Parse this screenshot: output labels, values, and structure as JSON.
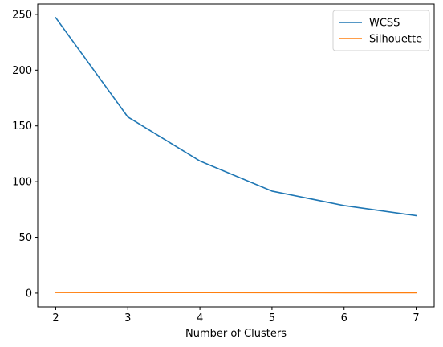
{
  "chart_data": {
    "type": "line",
    "title": "",
    "xlabel": "Number of Clusters",
    "ylabel": "",
    "x": [
      2,
      3,
      4,
      5,
      6,
      7
    ],
    "xlim": [
      1.75,
      7.25
    ],
    "ylim": [
      -12.3,
      259.3
    ],
    "xticks": [
      2,
      3,
      4,
      5,
      6,
      7
    ],
    "yticks": [
      0,
      50,
      100,
      150,
      200,
      250
    ],
    "grid": false,
    "legend_position": "top-right",
    "series": [
      {
        "name": "WCSS",
        "color": "#1f77b4",
        "values": [
          247.0,
          158.0,
          118.5,
          91.5,
          78.5,
          69.5
        ]
      },
      {
        "name": "Silhouette",
        "color": "#ff7f0e",
        "values": [
          0.58,
          0.55,
          0.5,
          0.42,
          0.36,
          0.34
        ]
      }
    ]
  }
}
